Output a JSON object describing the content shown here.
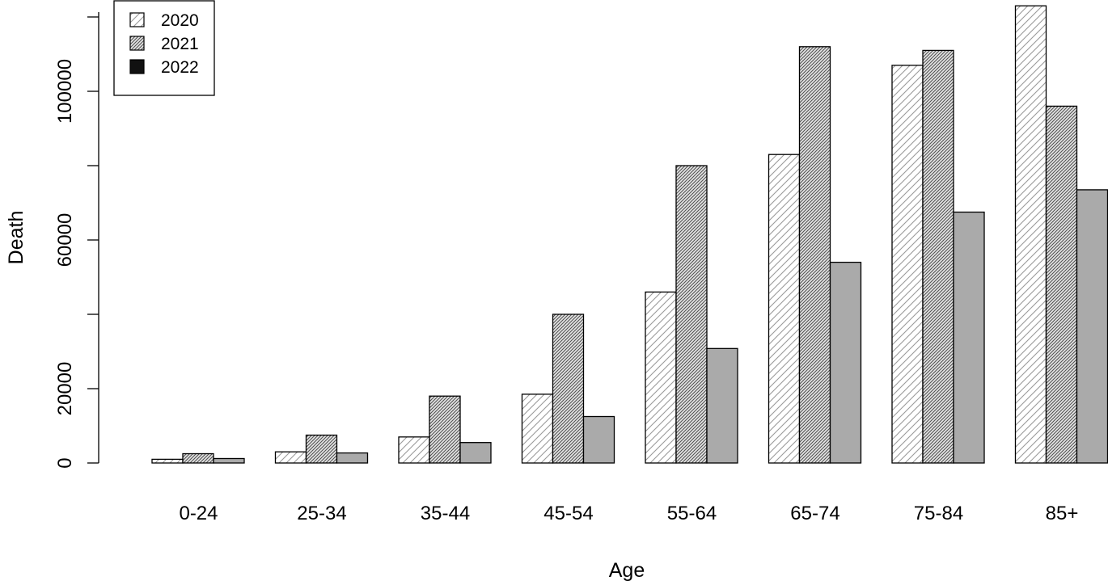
{
  "chart_data": {
    "type": "bar",
    "categories": [
      "0-24",
      "25-34",
      "35-44",
      "45-54",
      "55-64",
      "65-74",
      "75-84",
      "85+"
    ],
    "series": [
      {
        "name": "2020",
        "values": [
          1000,
          3000,
          7000,
          18500,
          46000,
          83000,
          107000,
          123000
        ]
      },
      {
        "name": "2021",
        "values": [
          2500,
          7500,
          18000,
          40000,
          80000,
          112000,
          111000,
          96000
        ]
      },
      {
        "name": "2022",
        "values": [
          1200,
          2700,
          5500,
          12500,
          30800,
          54000,
          67500,
          73500
        ]
      }
    ],
    "xlabel": "Age",
    "ylabel": "Death",
    "yticks": [
      0,
      20000,
      60000,
      100000
    ],
    "ylim": [
      0,
      120000
    ],
    "legend_position": "top-left",
    "grid": false
  }
}
